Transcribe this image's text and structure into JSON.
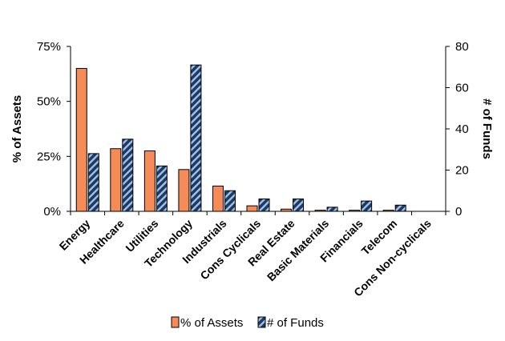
{
  "chart_data": {
    "type": "bar",
    "categories": [
      "Energy",
      "Healthcare",
      "Utilities",
      "Technology",
      "Industrials",
      "Cons Cyclicals",
      "Real Estate",
      "Basic Materials",
      "Financials",
      "Telecom",
      "Cons Non-cyclicals"
    ],
    "series": [
      {
        "name": "% of Assets",
        "axis": "left",
        "color": "#f58b57",
        "pattern": "solid",
        "values": [
          65,
          28.5,
          27.5,
          19,
          11.5,
          2.5,
          1,
          0.5,
          0.5,
          0.5,
          0
        ]
      },
      {
        "name": "# of Funds",
        "axis": "right",
        "color": "#1f3864",
        "pattern": "diagonal-stripes",
        "values": [
          28,
          35,
          22,
          71,
          10,
          6,
          6,
          2,
          5,
          3,
          0
        ]
      }
    ],
    "y_left": {
      "label": "% of Assets",
      "lim": [
        0,
        75
      ],
      "ticks": [
        0,
        25,
        50,
        75
      ],
      "tick_labels": [
        "0%",
        "25%",
        "50%",
        "75%"
      ]
    },
    "y_right": {
      "label": "# of Funds",
      "lim": [
        0,
        80
      ],
      "ticks": [
        0,
        20,
        40,
        60,
        80
      ],
      "tick_labels": [
        "0",
        "20",
        "40",
        "60",
        "80"
      ]
    },
    "grid": false,
    "legend_position": "bottom"
  }
}
